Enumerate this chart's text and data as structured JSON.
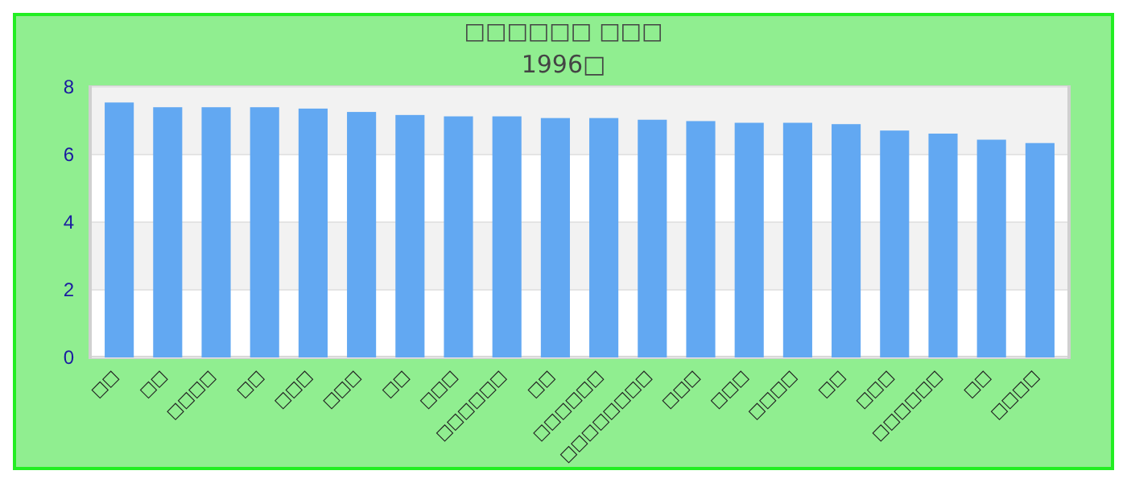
{
  "chart_data": {
    "type": "bar",
    "title": "□□□□□□ □□□",
    "subtitle": "1996□",
    "categories": [
      "□□",
      "□□",
      "□□□□",
      "□□",
      "□□□",
      "□□□",
      "□□",
      "□□□",
      "□□□□□□",
      "□□",
      "□□□□□□",
      "□□□□□□□□",
      "□□□",
      "□□□",
      "□□□□",
      "□□",
      "□□□",
      "□□□□□□",
      "□□",
      "□□□□"
    ],
    "values": [
      7.54,
      7.4,
      7.4,
      7.4,
      7.36,
      7.26,
      7.17,
      7.13,
      7.13,
      7.08,
      7.08,
      7.03,
      6.99,
      6.94,
      6.94,
      6.9,
      6.71,
      6.62,
      6.44,
      6.34
    ],
    "color": "#62a8f2",
    "ylim": [
      0,
      8
    ],
    "yticks": [
      0,
      2,
      4,
      6,
      8
    ],
    "grid": "y"
  }
}
